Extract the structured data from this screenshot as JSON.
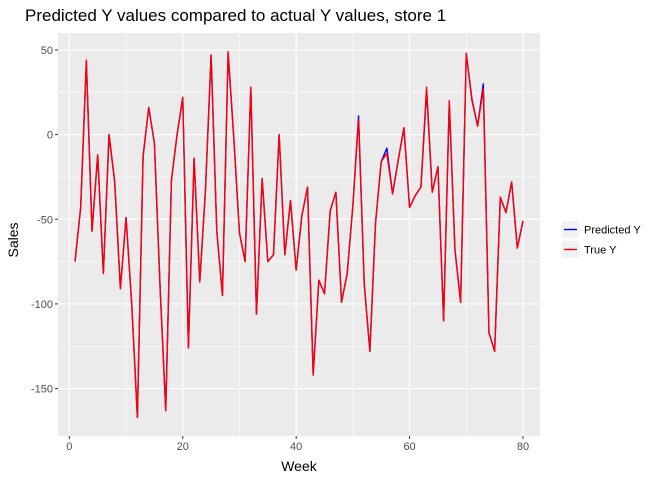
{
  "chart_data": {
    "type": "line",
    "title": "Predicted Y values compared to actual Y values, store 1",
    "xlabel": "Week",
    "ylabel": "Sales",
    "xlim": [
      -2,
      83
    ],
    "ylim": [
      -178,
      60
    ],
    "x_ticks": [
      0,
      20,
      40,
      60,
      80
    ],
    "y_ticks": [
      50,
      0,
      -50,
      -100,
      -150
    ],
    "x_tick_labels": [
      "0",
      "20",
      "40",
      "60",
      "80"
    ],
    "y_tick_labels": [
      "50",
      "0",
      "-50",
      "-100",
      "-150"
    ],
    "grid": true,
    "legend_position": "right",
    "legend": [
      {
        "name": "Predicted Y",
        "color": "#0000ff"
      },
      {
        "name": "True Y",
        "color": "#ff0000"
      }
    ],
    "x": [
      1,
      2,
      3,
      4,
      5,
      6,
      7,
      8,
      9,
      10,
      11,
      12,
      13,
      14,
      15,
      16,
      17,
      18,
      19,
      20,
      21,
      22,
      23,
      24,
      25,
      26,
      27,
      28,
      29,
      30,
      31,
      32,
      33,
      34,
      35,
      36,
      37,
      38,
      39,
      40,
      41,
      42,
      43,
      44,
      45,
      46,
      47,
      48,
      49,
      50,
      51,
      52,
      53,
      54,
      55,
      56,
      57,
      58,
      59,
      60,
      61,
      62,
      63,
      64,
      65,
      66,
      67,
      68,
      69,
      70,
      71,
      72,
      73,
      74,
      75,
      76,
      77,
      78,
      79,
      80
    ],
    "series": [
      {
        "name": "Predicted Y",
        "color": "#0000ff",
        "values": [
          -75,
          -43,
          43,
          -57,
          -12,
          -82,
          0,
          -28,
          -91,
          -49,
          -100,
          -167,
          -13,
          16,
          -5,
          -90,
          -163,
          -27,
          0,
          22,
          -126,
          -14,
          -87,
          -33,
          47,
          -57,
          -95,
          48,
          -2,
          -58,
          -75,
          28,
          -106,
          -26,
          -75,
          -71,
          0,
          -71,
          -39,
          -80,
          -48,
          -31,
          -142,
          -86,
          -94,
          -45,
          -34,
          -99,
          -82,
          -42,
          11,
          -88,
          -128,
          -52,
          -16,
          -8,
          -35,
          -15,
          4,
          -43,
          -36,
          -31,
          26,
          -34,
          -19,
          -110,
          19,
          -68,
          -99,
          48,
          21,
          5,
          30,
          -117,
          -128,
          -37,
          -46,
          -28,
          -67,
          -51
        ]
      },
      {
        "name": "True Y",
        "color": "#ff0000",
        "values": [
          -75,
          -43,
          44,
          -57,
          -12,
          -82,
          0,
          -28,
          -91,
          -49,
          -100,
          -167,
          -13,
          16,
          -5,
          -90,
          -163,
          -27,
          0,
          22,
          -126,
          -14,
          -87,
          -33,
          47,
          -57,
          -95,
          49,
          -2,
          -58,
          -75,
          28,
          -106,
          -26,
          -75,
          -71,
          0,
          -71,
          -39,
          -80,
          -48,
          -31,
          -142,
          -86,
          -94,
          -45,
          -34,
          -99,
          -82,
          -42,
          9,
          -88,
          -128,
          -52,
          -16,
          -11,
          -35,
          -15,
          4,
          -43,
          -36,
          -31,
          28,
          -34,
          -19,
          -110,
          20,
          -68,
          -99,
          48,
          20,
          5,
          27,
          -117,
          -128,
          -37,
          -46,
          -28,
          -67,
          -51
        ]
      }
    ]
  }
}
